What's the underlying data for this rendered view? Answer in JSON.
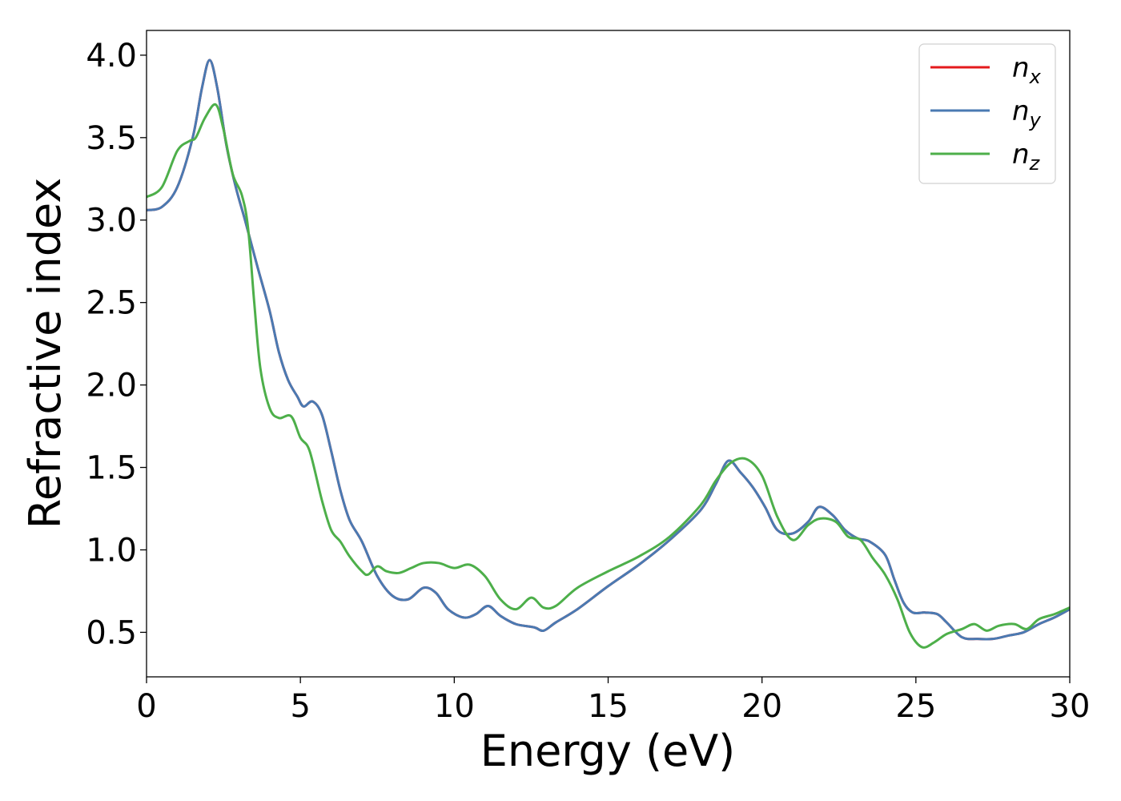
{
  "chart_data": {
    "type": "line",
    "title": "",
    "xlabel": "Energy (eV)",
    "ylabel": "Refractive index",
    "xlim": [
      0,
      30
    ],
    "ylim": [
      0.23,
      4.15
    ],
    "xticks": [
      "0",
      "5",
      "10",
      "15",
      "20",
      "25",
      "30"
    ],
    "yticks": [
      "0.5",
      "1.0",
      "1.5",
      "2.0",
      "2.5",
      "3.0",
      "3.5",
      "4.0"
    ],
    "grid": false,
    "legend_position": "top-right",
    "series": [
      {
        "name": "n_x",
        "label_main": "n",
        "label_sub": "x",
        "color": "#e41a1c",
        "points": [
          [
            0,
            3.06
          ],
          [
            0.5,
            3.08
          ],
          [
            1.0,
            3.2
          ],
          [
            1.5,
            3.5
          ],
          [
            1.8,
            3.8
          ],
          [
            2.05,
            3.97
          ],
          [
            2.3,
            3.8
          ],
          [
            2.6,
            3.45
          ],
          [
            2.9,
            3.2
          ],
          [
            3.2,
            3.0
          ],
          [
            3.6,
            2.72
          ],
          [
            4.0,
            2.45
          ],
          [
            4.3,
            2.2
          ],
          [
            4.6,
            2.03
          ],
          [
            4.9,
            1.93
          ],
          [
            5.1,
            1.87
          ],
          [
            5.4,
            1.9
          ],
          [
            5.7,
            1.82
          ],
          [
            6.0,
            1.6
          ],
          [
            6.3,
            1.36
          ],
          [
            6.6,
            1.18
          ],
          [
            7.0,
            1.05
          ],
          [
            7.5,
            0.84
          ],
          [
            8.0,
            0.72
          ],
          [
            8.5,
            0.7
          ],
          [
            9.0,
            0.77
          ],
          [
            9.4,
            0.74
          ],
          [
            9.8,
            0.64
          ],
          [
            10.3,
            0.59
          ],
          [
            10.7,
            0.61
          ],
          [
            11.1,
            0.66
          ],
          [
            11.5,
            0.6
          ],
          [
            12.0,
            0.55
          ],
          [
            12.6,
            0.53
          ],
          [
            12.9,
            0.51
          ],
          [
            13.3,
            0.56
          ],
          [
            14.0,
            0.64
          ],
          [
            15.0,
            0.78
          ],
          [
            16.0,
            0.91
          ],
          [
            17.0,
            1.06
          ],
          [
            18.0,
            1.24
          ],
          [
            18.5,
            1.4
          ],
          [
            18.9,
            1.54
          ],
          [
            19.3,
            1.47
          ],
          [
            19.7,
            1.38
          ],
          [
            20.1,
            1.26
          ],
          [
            20.5,
            1.12
          ],
          [
            21.0,
            1.1
          ],
          [
            21.5,
            1.17
          ],
          [
            21.85,
            1.26
          ],
          [
            22.3,
            1.21
          ],
          [
            22.7,
            1.12
          ],
          [
            23.1,
            1.07
          ],
          [
            23.5,
            1.05
          ],
          [
            24.0,
            0.97
          ],
          [
            24.3,
            0.82
          ],
          [
            24.6,
            0.68
          ],
          [
            24.9,
            0.62
          ],
          [
            25.3,
            0.62
          ],
          [
            25.7,
            0.61
          ],
          [
            26.0,
            0.56
          ],
          [
            26.5,
            0.47
          ],
          [
            27.0,
            0.46
          ],
          [
            27.5,
            0.46
          ],
          [
            28.0,
            0.48
          ],
          [
            28.5,
            0.5
          ],
          [
            29.0,
            0.55
          ],
          [
            29.5,
            0.59
          ],
          [
            30.0,
            0.64
          ]
        ]
      },
      {
        "name": "n_y",
        "label_main": "n",
        "label_sub": "y",
        "color": "#4a7ab2",
        "points": [
          [
            0,
            3.06
          ],
          [
            0.5,
            3.08
          ],
          [
            1.0,
            3.2
          ],
          [
            1.5,
            3.5
          ],
          [
            1.8,
            3.8
          ],
          [
            2.05,
            3.97
          ],
          [
            2.3,
            3.8
          ],
          [
            2.6,
            3.45
          ],
          [
            2.9,
            3.2
          ],
          [
            3.2,
            3.0
          ],
          [
            3.6,
            2.72
          ],
          [
            4.0,
            2.45
          ],
          [
            4.3,
            2.2
          ],
          [
            4.6,
            2.03
          ],
          [
            4.9,
            1.93
          ],
          [
            5.1,
            1.87
          ],
          [
            5.4,
            1.9
          ],
          [
            5.7,
            1.82
          ],
          [
            6.0,
            1.6
          ],
          [
            6.3,
            1.36
          ],
          [
            6.6,
            1.18
          ],
          [
            7.0,
            1.05
          ],
          [
            7.5,
            0.84
          ],
          [
            8.0,
            0.72
          ],
          [
            8.5,
            0.7
          ],
          [
            9.0,
            0.77
          ],
          [
            9.4,
            0.74
          ],
          [
            9.8,
            0.64
          ],
          [
            10.3,
            0.59
          ],
          [
            10.7,
            0.61
          ],
          [
            11.1,
            0.66
          ],
          [
            11.5,
            0.6
          ],
          [
            12.0,
            0.55
          ],
          [
            12.6,
            0.53
          ],
          [
            12.9,
            0.51
          ],
          [
            13.3,
            0.56
          ],
          [
            14.0,
            0.64
          ],
          [
            15.0,
            0.78
          ],
          [
            16.0,
            0.91
          ],
          [
            17.0,
            1.06
          ],
          [
            18.0,
            1.24
          ],
          [
            18.5,
            1.4
          ],
          [
            18.9,
            1.54
          ],
          [
            19.3,
            1.47
          ],
          [
            19.7,
            1.38
          ],
          [
            20.1,
            1.26
          ],
          [
            20.5,
            1.12
          ],
          [
            21.0,
            1.1
          ],
          [
            21.5,
            1.17
          ],
          [
            21.85,
            1.26
          ],
          [
            22.3,
            1.21
          ],
          [
            22.7,
            1.12
          ],
          [
            23.1,
            1.07
          ],
          [
            23.5,
            1.05
          ],
          [
            24.0,
            0.97
          ],
          [
            24.3,
            0.82
          ],
          [
            24.6,
            0.68
          ],
          [
            24.9,
            0.62
          ],
          [
            25.3,
            0.62
          ],
          [
            25.7,
            0.61
          ],
          [
            26.0,
            0.56
          ],
          [
            26.5,
            0.47
          ],
          [
            27.0,
            0.46
          ],
          [
            27.5,
            0.46
          ],
          [
            28.0,
            0.48
          ],
          [
            28.5,
            0.5
          ],
          [
            29.0,
            0.55
          ],
          [
            29.5,
            0.59
          ],
          [
            30.0,
            0.64
          ]
        ]
      },
      {
        "name": "n_z",
        "label_main": "n",
        "label_sub": "z",
        "color": "#4daf4a",
        "points": [
          [
            0,
            3.14
          ],
          [
            0.5,
            3.2
          ],
          [
            1.0,
            3.42
          ],
          [
            1.4,
            3.48
          ],
          [
            1.6,
            3.5
          ],
          [
            1.9,
            3.62
          ],
          [
            2.25,
            3.7
          ],
          [
            2.5,
            3.55
          ],
          [
            2.8,
            3.28
          ],
          [
            3.1,
            3.15
          ],
          [
            3.3,
            2.95
          ],
          [
            3.5,
            2.5
          ],
          [
            3.7,
            2.1
          ],
          [
            4.0,
            1.86
          ],
          [
            4.3,
            1.8
          ],
          [
            4.7,
            1.81
          ],
          [
            5.0,
            1.68
          ],
          [
            5.3,
            1.6
          ],
          [
            5.7,
            1.3
          ],
          [
            6.0,
            1.12
          ],
          [
            6.3,
            1.05
          ],
          [
            6.6,
            0.96
          ],
          [
            7.0,
            0.87
          ],
          [
            7.2,
            0.85
          ],
          [
            7.5,
            0.9
          ],
          [
            7.8,
            0.87
          ],
          [
            8.2,
            0.86
          ],
          [
            8.6,
            0.89
          ],
          [
            9.0,
            0.92
          ],
          [
            9.5,
            0.92
          ],
          [
            10.0,
            0.89
          ],
          [
            10.5,
            0.91
          ],
          [
            11.0,
            0.84
          ],
          [
            11.5,
            0.7
          ],
          [
            12.0,
            0.64
          ],
          [
            12.5,
            0.71
          ],
          [
            12.9,
            0.65
          ],
          [
            13.3,
            0.66
          ],
          [
            14.0,
            0.77
          ],
          [
            15.0,
            0.87
          ],
          [
            16.0,
            0.96
          ],
          [
            17.0,
            1.08
          ],
          [
            18.0,
            1.27
          ],
          [
            18.5,
            1.42
          ],
          [
            19.0,
            1.53
          ],
          [
            19.5,
            1.55
          ],
          [
            20.0,
            1.45
          ],
          [
            20.5,
            1.2
          ],
          [
            21.0,
            1.06
          ],
          [
            21.5,
            1.15
          ],
          [
            21.9,
            1.19
          ],
          [
            22.4,
            1.17
          ],
          [
            22.8,
            1.08
          ],
          [
            23.2,
            1.06
          ],
          [
            23.6,
            0.95
          ],
          [
            24.0,
            0.85
          ],
          [
            24.4,
            0.7
          ],
          [
            24.8,
            0.5
          ],
          [
            25.2,
            0.41
          ],
          [
            25.6,
            0.44
          ],
          [
            26.0,
            0.49
          ],
          [
            26.5,
            0.52
          ],
          [
            26.9,
            0.55
          ],
          [
            27.3,
            0.51
          ],
          [
            27.7,
            0.54
          ],
          [
            28.2,
            0.55
          ],
          [
            28.6,
            0.52
          ],
          [
            29.0,
            0.58
          ],
          [
            29.5,
            0.61
          ],
          [
            30.0,
            0.65
          ]
        ]
      }
    ]
  }
}
